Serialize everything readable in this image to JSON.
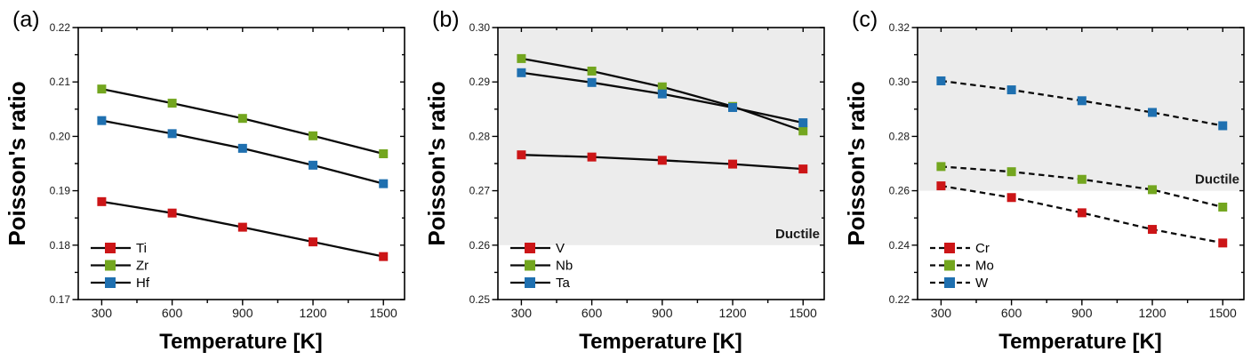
{
  "figure": {
    "background": "#ffffff",
    "axis_color": "#000000",
    "line_color": "#0a0a0a"
  },
  "chart_data": [
    {
      "type": "line",
      "panel_label": "(a)",
      "xlabel": "Temperature [K]",
      "ylabel": "Poisson's ratio",
      "x": [
        300,
        600,
        900,
        1200,
        1500
      ],
      "xlim": [
        200,
        1590
      ],
      "ylim": [
        0.17,
        0.22
      ],
      "xticks": [
        300,
        600,
        900,
        1200,
        1500
      ],
      "xtick_labels": [
        "300",
        "600",
        "900",
        "1200",
        "1500"
      ],
      "xminor": [
        450,
        750,
        1050,
        1350
      ],
      "yticks": [
        0.17,
        0.18,
        0.19,
        0.2,
        0.21,
        0.22
      ],
      "ytick_labels": [
        "0.17",
        "0.18",
        "0.19",
        "0.20",
        "0.21",
        "0.22"
      ],
      "yminor": [
        0.175,
        0.185,
        0.195,
        0.205,
        0.215
      ],
      "line_dash": "solid",
      "legend_position": "bottom-left",
      "shaded_region": null,
      "series": [
        {
          "name": "Ti",
          "color": "#CC1517",
          "values": [
            0.188,
            0.1859,
            0.1833,
            0.1806,
            0.1779
          ]
        },
        {
          "name": "Zr",
          "color": "#73A61F",
          "values": [
            0.2087,
            0.2061,
            0.2033,
            0.2001,
            0.1968
          ]
        },
        {
          "name": "Hf",
          "color": "#1F70B0",
          "values": [
            0.2029,
            0.2005,
            0.1978,
            0.1947,
            0.1913
          ]
        }
      ]
    },
    {
      "type": "line",
      "panel_label": "(b)",
      "xlabel": "Temperature [K]",
      "ylabel": "Poisson's ratio",
      "x": [
        300,
        600,
        900,
        1200,
        1500
      ],
      "xlim": [
        200,
        1590
      ],
      "ylim": [
        0.25,
        0.3
      ],
      "xticks": [
        300,
        600,
        900,
        1200,
        1500
      ],
      "xtick_labels": [
        "300",
        "600",
        "900",
        "1200",
        "1500"
      ],
      "xminor": [
        450,
        750,
        1050,
        1350
      ],
      "yticks": [
        0.25,
        0.26,
        0.27,
        0.28,
        0.29,
        0.3
      ],
      "ytick_labels": [
        "0.25",
        "0.26",
        "0.27",
        "0.28",
        "0.29",
        "0.30"
      ],
      "yminor": [
        0.255,
        0.265,
        0.275,
        0.285,
        0.295
      ],
      "line_dash": "solid",
      "legend_position": "bottom-left",
      "shaded_region": {
        "from": 0.26,
        "to": 0.3,
        "label": "Ductile",
        "color": "#ECECEC"
      },
      "series": [
        {
          "name": "V",
          "color": "#CC1517",
          "values": [
            0.2766,
            0.2762,
            0.2756,
            0.2749,
            0.274
          ]
        },
        {
          "name": "Nb",
          "color": "#73A61F",
          "values": [
            0.2943,
            0.292,
            0.2891,
            0.2855,
            0.281
          ]
        },
        {
          "name": "Ta",
          "color": "#1F70B0",
          "values": [
            0.2917,
            0.2899,
            0.2878,
            0.2853,
            0.2825
          ]
        }
      ]
    },
    {
      "type": "line",
      "panel_label": "(c)",
      "xlabel": "Temperature [K]",
      "ylabel": "Poisson's ratio",
      "x": [
        300,
        600,
        900,
        1200,
        1500
      ],
      "xlim": [
        200,
        1590
      ],
      "ylim": [
        0.22,
        0.32
      ],
      "xticks": [
        300,
        600,
        900,
        1200,
        1500
      ],
      "xtick_labels": [
        "300",
        "600",
        "900",
        "1200",
        "1500"
      ],
      "xminor": [
        450,
        750,
        1050,
        1350
      ],
      "yticks": [
        0.22,
        0.24,
        0.26,
        0.28,
        0.3,
        0.32
      ],
      "ytick_labels": [
        "0.22",
        "0.24",
        "0.26",
        "0.28",
        "0.30",
        "0.32"
      ],
      "yminor": [
        0.23,
        0.25,
        0.27,
        0.29,
        0.31
      ],
      "line_dash": "dashed",
      "legend_position": "bottom-left",
      "shaded_region": {
        "from": 0.26,
        "to": 0.32,
        "label": "Ductile",
        "color": "#ECECEC"
      },
      "series": [
        {
          "name": "Cr",
          "color": "#CC1517",
          "values": [
            0.2618,
            0.2575,
            0.2519,
            0.2458,
            0.2408
          ]
        },
        {
          "name": "Mo",
          "color": "#73A61F",
          "values": [
            0.2689,
            0.267,
            0.2642,
            0.2604,
            0.254
          ]
        },
        {
          "name": "W",
          "color": "#1F70B0",
          "values": [
            0.3004,
            0.2971,
            0.2931,
            0.2888,
            0.2839
          ]
        }
      ]
    }
  ]
}
